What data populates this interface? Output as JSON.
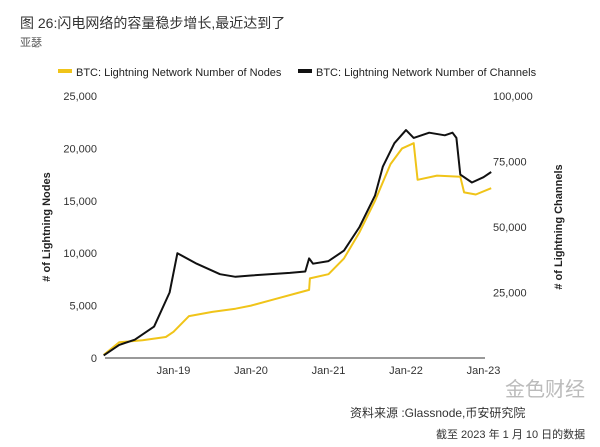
{
  "header": {
    "title": "图 26:闪电网络的容量稳步增长,最近达到了",
    "author": "亚瑟"
  },
  "footer": {
    "source": "资料来源 :Glassnode,币安研究院",
    "date": "截至 2023 年 1 月 10 日的数据",
    "watermark": "金色财经"
  },
  "chart_data": {
    "type": "line",
    "title": "",
    "legend": [
      "BTC: Lightning Network Number of Nodes",
      "BTC: Lightning Network Number of Channels"
    ],
    "legend_position": "top",
    "ylabel": "# of Lightning Nodes",
    "y2label": "# of Lightning Channels",
    "ylim": [
      0,
      25000
    ],
    "y2lim": [
      0,
      100000
    ],
    "yticks": [
      "0",
      "5,000",
      "10,000",
      "15,000",
      "20,000",
      "25,000"
    ],
    "y2ticks": [
      "25,000",
      "50,000",
      "75,000",
      "100,000"
    ],
    "xticks": [
      "Jan-19",
      "Jan-20",
      "Jan-21",
      "Jan-22",
      "Jan-23"
    ],
    "colors": {
      "nodes": "#f0c419",
      "channels": "#111111"
    },
    "series": [
      {
        "name": "Nodes",
        "axis": "left",
        "points": [
          [
            2018.1,
            300
          ],
          [
            2018.3,
            1500
          ],
          [
            2018.6,
            1700
          ],
          [
            2018.9,
            2000
          ],
          [
            2019.0,
            2500
          ],
          [
            2019.2,
            4000
          ],
          [
            2019.5,
            4400
          ],
          [
            2019.8,
            4700
          ],
          [
            2020.0,
            5000
          ],
          [
            2020.3,
            5600
          ],
          [
            2020.6,
            6200
          ],
          [
            2020.75,
            6500
          ],
          [
            2020.76,
            7600
          ],
          [
            2021.0,
            8000
          ],
          [
            2021.2,
            9500
          ],
          [
            2021.4,
            12000
          ],
          [
            2021.6,
            15000
          ],
          [
            2021.8,
            18500
          ],
          [
            2021.95,
            20000
          ],
          [
            2022.1,
            20500
          ],
          [
            2022.15,
            17000
          ],
          [
            2022.4,
            17400
          ],
          [
            2022.7,
            17300
          ],
          [
            2022.75,
            15800
          ],
          [
            2022.9,
            15600
          ],
          [
            2023.1,
            16200
          ]
        ]
      },
      {
        "name": "Channels",
        "axis": "right",
        "points": [
          [
            2018.1,
            1000
          ],
          [
            2018.3,
            5000
          ],
          [
            2018.5,
            7000
          ],
          [
            2018.75,
            12000
          ],
          [
            2018.95,
            25000
          ],
          [
            2019.05,
            40000
          ],
          [
            2019.3,
            36000
          ],
          [
            2019.6,
            32000
          ],
          [
            2019.8,
            31000
          ],
          [
            2020.0,
            31500
          ],
          [
            2020.5,
            32500
          ],
          [
            2020.7,
            33000
          ],
          [
            2020.75,
            38000
          ],
          [
            2020.8,
            36000
          ],
          [
            2021.0,
            37000
          ],
          [
            2021.2,
            41000
          ],
          [
            2021.4,
            50000
          ],
          [
            2021.6,
            62000
          ],
          [
            2021.7,
            73000
          ],
          [
            2021.85,
            82000
          ],
          [
            2022.0,
            87000
          ],
          [
            2022.1,
            84000
          ],
          [
            2022.3,
            86000
          ],
          [
            2022.5,
            85000
          ],
          [
            2022.6,
            86000
          ],
          [
            2022.65,
            84000
          ],
          [
            2022.7,
            70000
          ],
          [
            2022.85,
            67000
          ],
          [
            2023.0,
            69000
          ],
          [
            2023.1,
            71000
          ]
        ]
      }
    ]
  }
}
